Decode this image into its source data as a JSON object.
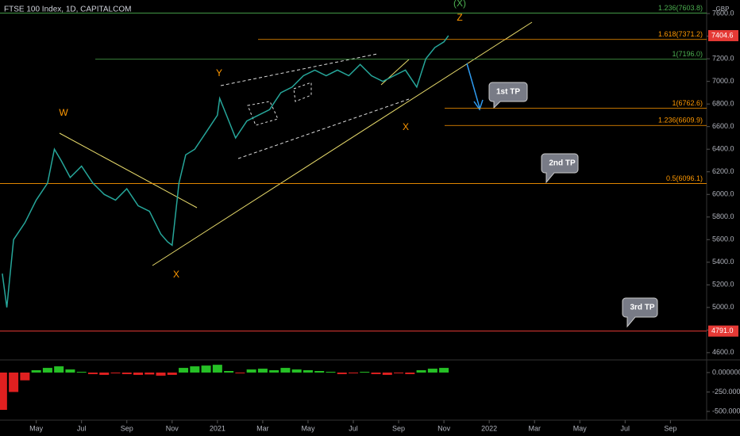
{
  "chart_data": {
    "type": "line",
    "title": "FTSE 100 Index, 1D, CAPITALCOM",
    "currency": "GBP",
    "color": "#26a69a",
    "x": [
      0.5,
      0.7,
      1.0,
      1.5,
      2.0,
      2.5,
      2.8,
      3.1,
      3.5,
      4.0,
      4.5,
      5.0,
      5.5,
      6.0,
      6.5,
      7.0,
      7.5,
      7.8,
      8.0,
      8.3,
      8.6,
      9.0,
      9.5,
      10.0,
      10.1,
      10.4,
      10.8,
      11.3,
      11.8,
      12.3,
      12.8,
      13.3,
      13.8,
      14.3,
      14.8,
      15.3,
      15.8,
      16.3,
      16.8,
      17.3,
      17.8,
      18.3,
      18.8,
      19.2,
      19.6,
      20.0,
      20.2
    ],
    "values": [
      5300,
      5000,
      5600,
      5750,
      5950,
      6100,
      6400,
      6300,
      6150,
      6250,
      6100,
      6000,
      5950,
      6050,
      5900,
      5850,
      5650,
      5580,
      5550,
      6100,
      6350,
      6400,
      6550,
      6700,
      6850,
      6700,
      6500,
      6650,
      6700,
      6750,
      6900,
      6950,
      7050,
      7100,
      7050,
      7100,
      7050,
      7150,
      7050,
      7000,
      7050,
      7100,
      6950,
      7200,
      7300,
      7350,
      7404.6
    ],
    "xlim": [
      0.4,
      31.6
    ],
    "xticks": [
      {
        "value": 2,
        "label": "May"
      },
      {
        "value": 4,
        "label": "Jul"
      },
      {
        "value": 6,
        "label": "Sep"
      },
      {
        "value": 8,
        "label": "Nov"
      },
      {
        "value": 10,
        "label": "2021"
      },
      {
        "value": 12,
        "label": "Mar"
      },
      {
        "value": 14,
        "label": "May"
      },
      {
        "value": 16,
        "label": "Jul"
      },
      {
        "value": 18,
        "label": "Sep"
      },
      {
        "value": 20,
        "label": "Nov"
      },
      {
        "value": 22,
        "label": "2022"
      },
      {
        "value": 24,
        "label": "Mar"
      },
      {
        "value": 26,
        "label": "May"
      },
      {
        "value": 28,
        "label": "Jul"
      },
      {
        "value": 30,
        "label": "Sep"
      }
    ],
    "ylim": [
      4550,
      7720
    ],
    "yticks": [
      {
        "value": 4600,
        "label": "4600.0"
      },
      {
        "value": 4800,
        "label": "4800.0"
      },
      {
        "value": 5000,
        "label": "5000.0"
      },
      {
        "value": 5200,
        "label": "5200.0"
      },
      {
        "value": 5400,
        "label": "5400.0"
      },
      {
        "value": 5600,
        "label": "5600.0"
      },
      {
        "value": 5800,
        "label": "5800.0"
      },
      {
        "value": 6000,
        "label": "6000.0"
      },
      {
        "value": 6200,
        "label": "6200.0"
      },
      {
        "value": 6400,
        "label": "6400.0"
      },
      {
        "value": 6600,
        "label": "6600.0"
      },
      {
        "value": 6800,
        "label": "6800.0"
      },
      {
        "value": 7000,
        "label": "7000.0"
      },
      {
        "value": 7200,
        "label": "7200.0"
      },
      {
        "value": 7400,
        "label": "7400.0"
      },
      {
        "value": 7600,
        "label": "7600.0"
      }
    ],
    "price_markers": [
      {
        "value": 7404.6,
        "label": "7404.6"
      },
      {
        "value": 4791.0,
        "label": "4791.0"
      }
    ],
    "levels": [
      {
        "value": 7603.8,
        "label": "1.236(7603.8)",
        "color": "#4caf50"
      },
      {
        "value": 7371.2,
        "label": "1.618(7371.2)",
        "color": "#ff9800"
      },
      {
        "value": 7196.0,
        "label": "1(7196.0)",
        "color": "#4caf50"
      },
      {
        "value": 6762.6,
        "label": "1(6762.6)",
        "color": "#ff9800"
      },
      {
        "value": 6609.9,
        "label": "1.236(6609.9)",
        "color": "#ff9800"
      },
      {
        "value": 6096.1,
        "label": "0.5(6096.1)",
        "color": "#ff9800"
      }
    ],
    "annotations": [
      "W",
      "X",
      "Y",
      "X",
      "Z",
      "(X)"
    ],
    "targets": [
      "1st TP",
      "2nd TP",
      "3rd TP"
    ],
    "oscillator": {
      "up_color": "#26c026",
      "down_color": "#e02020",
      "x": [
        0.5,
        1.0,
        1.5,
        2.0,
        2.5,
        3.0,
        3.5,
        4.0,
        4.5,
        5.0,
        5.5,
        6.0,
        6.5,
        7.0,
        7.5,
        8.0,
        8.5,
        9.0,
        9.5,
        10.0,
        10.5,
        11.0,
        11.5,
        12.0,
        12.5,
        13.0,
        13.5,
        14.0,
        14.5,
        15.0,
        15.5,
        16.0,
        16.5,
        17.0,
        17.5,
        18.0,
        18.5,
        19.0,
        19.5,
        20.0
      ],
      "values": [
        -480,
        -250,
        -100,
        30,
        60,
        80,
        40,
        10,
        -20,
        -30,
        -10,
        -20,
        -30,
        -25,
        -40,
        -30,
        60,
        80,
        90,
        100,
        20,
        -10,
        40,
        50,
        30,
        60,
        40,
        30,
        20,
        10,
        -20,
        -10,
        10,
        -20,
        -30,
        -10,
        -20,
        30,
        50,
        60
      ],
      "ylim": [
        -551,
        122
      ],
      "yticks": [
        {
          "value": 0,
          "label": "0.000000"
        },
        {
          "value": -250,
          "label": "-250.000000"
        },
        {
          "value": -500,
          "label": "-500.000000"
        }
      ]
    }
  }
}
